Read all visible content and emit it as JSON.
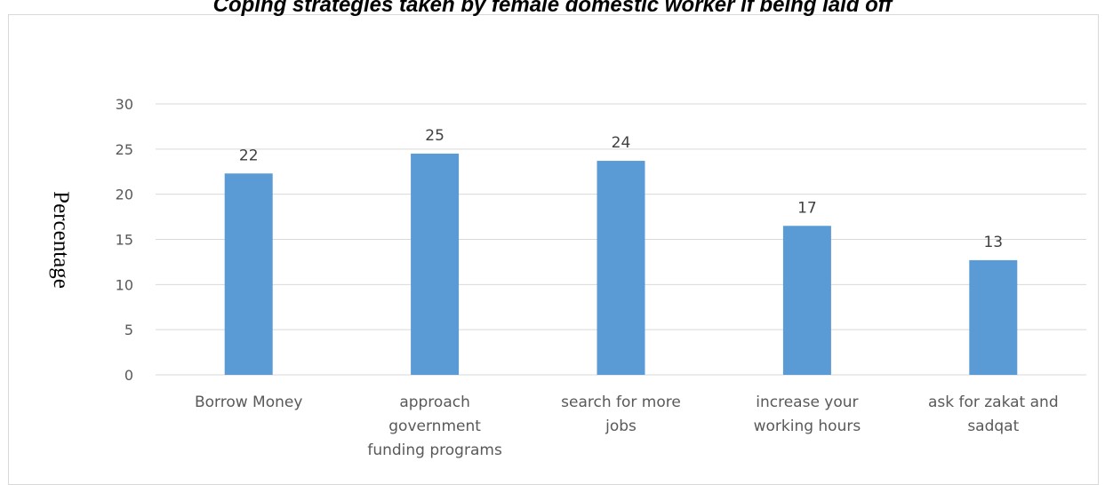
{
  "chart_data": {
    "type": "bar",
    "title": "Coping strategies taken by female domestic worker if being laid off",
    "xlabel": "",
    "ylabel": "Percentage",
    "categories": [
      [
        "Borrow Money"
      ],
      [
        "approach",
        "government",
        "funding programs"
      ],
      [
        "search for more",
        "jobs"
      ],
      [
        "increase your",
        "working hours"
      ],
      [
        "ask for zakat and",
        "sadqat"
      ]
    ],
    "values": [
      22.3,
      24.5,
      23.7,
      16.5,
      12.7
    ],
    "data_labels": [
      "22",
      "25",
      "24",
      "17",
      "13"
    ],
    "yticks": [
      "0",
      "5",
      "10",
      "15",
      "20",
      "25",
      "30"
    ],
    "ylim": [
      0,
      30
    ],
    "grid": true,
    "bar_color": "#5b9bd5",
    "grid_color": "#d9d9d9"
  }
}
